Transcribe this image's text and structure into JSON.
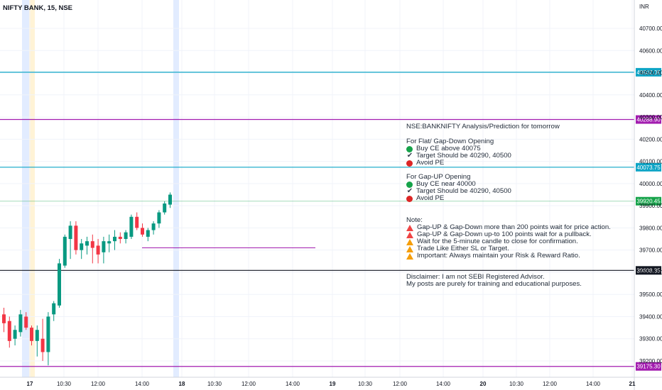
{
  "header": {
    "symbol": "NIFTY BANK, 15, NSE",
    "currency": "INR"
  },
  "chart_data": {
    "type": "candlestick",
    "ylim": [
      39175,
      40750
    ],
    "y_ticks": [
      40700,
      40600,
      40500,
      40400,
      40300,
      40200,
      40100,
      40000,
      39900,
      39800,
      39700,
      39600,
      39500,
      39400,
      39300,
      39200
    ],
    "x_ticks": [
      "17",
      "10:30",
      "12:00",
      "14:00",
      "18",
      "10:30",
      "12:00",
      "14:00",
      "19",
      "10:30",
      "12:00",
      "14:00",
      "20",
      "10:30",
      "12:00",
      "14:00",
      "21"
    ],
    "candles": [
      {
        "o": 39410,
        "h": 39440,
        "l": 39330,
        "c": 39370
      },
      {
        "o": 39380,
        "h": 39400,
        "l": 39260,
        "c": 39290
      },
      {
        "o": 39300,
        "h": 39360,
        "l": 39270,
        "c": 39340
      },
      {
        "o": 39330,
        "h": 39430,
        "l": 39310,
        "c": 39410
      },
      {
        "o": 39400,
        "h": 39420,
        "l": 39340,
        "c": 39350
      },
      {
        "o": 39350,
        "h": 39360,
        "l": 39270,
        "c": 39290
      },
      {
        "o": 39290,
        "h": 39360,
        "l": 39220,
        "c": 39340
      },
      {
        "o": 39300,
        "h": 39390,
        "l": 39200,
        "c": 39240
      },
      {
        "o": 39240,
        "h": 39420,
        "l": 39180,
        "c": 39400
      },
      {
        "o": 39410,
        "h": 39470,
        "l": 39380,
        "c": 39460
      },
      {
        "o": 39450,
        "h": 39660,
        "l": 39440,
        "c": 39640
      },
      {
        "o": 39630,
        "h": 39770,
        "l": 39620,
        "c": 39760
      },
      {
        "o": 39750,
        "h": 39830,
        "l": 39660,
        "c": 39810
      },
      {
        "o": 39810,
        "h": 39830,
        "l": 39680,
        "c": 39700
      },
      {
        "o": 39700,
        "h": 39750,
        "l": 39660,
        "c": 39730
      },
      {
        "o": 39720,
        "h": 39760,
        "l": 39680,
        "c": 39740
      },
      {
        "o": 39740,
        "h": 39770,
        "l": 39640,
        "c": 39710
      },
      {
        "o": 39720,
        "h": 39750,
        "l": 39640,
        "c": 39680
      },
      {
        "o": 39690,
        "h": 39760,
        "l": 39640,
        "c": 39740
      },
      {
        "o": 39730,
        "h": 39770,
        "l": 39690,
        "c": 39740
      },
      {
        "o": 39740,
        "h": 39790,
        "l": 39700,
        "c": 39760
      },
      {
        "o": 39760,
        "h": 39780,
        "l": 39730,
        "c": 39750
      },
      {
        "o": 39750,
        "h": 39790,
        "l": 39730,
        "c": 39780
      },
      {
        "o": 39760,
        "h": 39860,
        "l": 39750,
        "c": 39850
      },
      {
        "o": 39850,
        "h": 39870,
        "l": 39790,
        "c": 39800
      },
      {
        "o": 39800,
        "h": 39820,
        "l": 39760,
        "c": 39770
      },
      {
        "o": 39760,
        "h": 39800,
        "l": 39740,
        "c": 39790
      },
      {
        "o": 39790,
        "h": 39830,
        "l": 39770,
        "c": 39820
      },
      {
        "o": 39820,
        "h": 39880,
        "l": 39800,
        "c": 39870
      },
      {
        "o": 39870,
        "h": 39920,
        "l": 39860,
        "c": 39910
      },
      {
        "o": 39905,
        "h": 39960,
        "l": 39890,
        "c": 39950
      }
    ],
    "horizontal_levels": [
      {
        "value": 40502.05,
        "label": "40502.05",
        "color": "#0ea5c6"
      },
      {
        "value": 40288.9,
        "label": "40288.90",
        "color": "#a21caf"
      },
      {
        "value": 40073.75,
        "label": "40073.75",
        "color": "#0ea5c6"
      },
      {
        "value": 39920.45,
        "label": "39920.45",
        "color": "#16a34a"
      },
      {
        "value": 39608.35,
        "label": "39608.35",
        "color": "#131722"
      },
      {
        "value": 39175.3,
        "label": "39175.30",
        "color": "#a21caf"
      }
    ],
    "support_segment_value": 39710,
    "colors": {
      "up": "#089981",
      "down": "#f23645",
      "grid": "#f0f3fa",
      "axis_text": "#131722",
      "highlight_blue": "#dbe7ff",
      "highlight_yellow": "#fff3d6"
    }
  },
  "notes": {
    "title": "NSE:BANKNIFTY Analysis/Prediction for tomorrow",
    "flat_heading": "For Flat/ Gap-Down Opening",
    "flat_items": [
      "Buy CE above 40075",
      "Target Should be 40290, 40500",
      "Avoid PE"
    ],
    "gapup_heading": "For Gap-UP Opening",
    "gapup_items": [
      "Buy CE near 40000",
      "Target Should be 40290, 40500",
      "Avoid PE"
    ],
    "note_heading": "Note:",
    "note_items": [
      "Gap-UP & Gap-Down more than 200 points wait for price action.",
      "Gap-UP & Gap-Down up-to 100 points wait for a pullback.",
      "Wait for the 5-minute candle to close for confirmation.",
      "Trade Like Either SL or Target.",
      "Important: Always maintain your Risk & Reward Ratio."
    ],
    "disclaimer_1": "Disclaimer: I am not SEBI Registered Advisor.",
    "disclaimer_2": "My posts are purely for training and educational purposes."
  }
}
